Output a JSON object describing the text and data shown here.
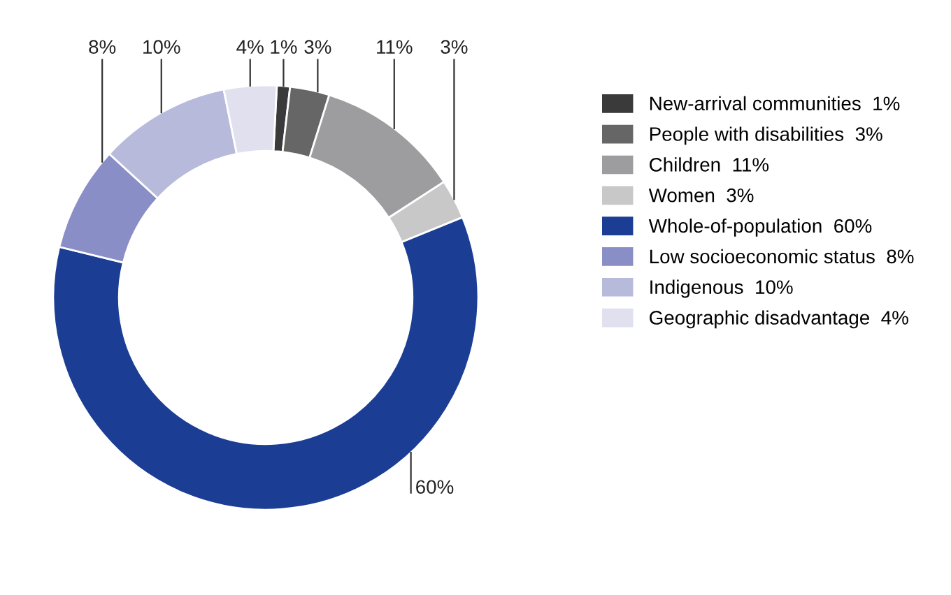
{
  "chart_data": {
    "type": "donut",
    "categories": [
      "New-arrival communities",
      "People with disabilities",
      "Children",
      "Women",
      "Whole-of-population",
      "Low socioeconomic status",
      "Indigenous",
      "Geographic disadvantage"
    ],
    "values": [
      1,
      3,
      11,
      3,
      60,
      8,
      10,
      4
    ],
    "value_labels": [
      "1%",
      "3%",
      "11%",
      "3%",
      "60%",
      "8%",
      "10%",
      "4%"
    ],
    "colors": [
      "#3a3a3a",
      "#666666",
      "#9d9d9f",
      "#c8c8c8",
      "#1b3e94",
      "#8a8ec6",
      "#b8badc",
      "#e0e0ef"
    ],
    "legend": "right"
  }
}
